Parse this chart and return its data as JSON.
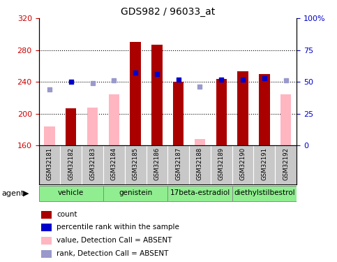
{
  "title": "GDS982 / 96033_at",
  "samples": [
    "GSM32181",
    "GSM32182",
    "GSM32183",
    "GSM32184",
    "GSM32185",
    "GSM32186",
    "GSM32187",
    "GSM32188",
    "GSM32189",
    "GSM32190",
    "GSM32191",
    "GSM32192"
  ],
  "count_values": [
    null,
    207,
    null,
    null,
    290,
    287,
    240,
    null,
    244,
    253,
    250,
    null
  ],
  "count_absent_values": [
    184,
    null,
    208,
    224,
    null,
    null,
    null,
    168,
    null,
    null,
    null,
    224
  ],
  "rank_pct_present": [
    null,
    50,
    null,
    null,
    57,
    56,
    52,
    null,
    52,
    52,
    53,
    null
  ],
  "rank_pct_absent": [
    44,
    null,
    49,
    51,
    null,
    null,
    null,
    46,
    null,
    null,
    null,
    51
  ],
  "ylim_left": [
    160,
    320
  ],
  "ylim_right": [
    0,
    100
  ],
  "yticks_left": [
    160,
    200,
    240,
    280,
    320
  ],
  "yticks_right": [
    0,
    25,
    50,
    75,
    100
  ],
  "ytick_labels_right": [
    "0",
    "25",
    "50",
    "75",
    "100%"
  ],
  "groups": [
    {
      "label": "vehicle",
      "start": 0,
      "end": 3
    },
    {
      "label": "genistein",
      "start": 3,
      "end": 6
    },
    {
      "label": "17beta-estradiol",
      "start": 6,
      "end": 9
    },
    {
      "label": "diethylstilbestrol",
      "start": 9,
      "end": 12
    }
  ],
  "bar_color_present": "#AA0000",
  "bar_color_absent": "#FFB6C1",
  "rank_color_present": "#0000CC",
  "rank_color_absent": "#9999CC",
  "rank_dot_size": 18,
  "tick_color_left": "#CC0000",
  "tick_color_right": "#0000CC",
  "group_color": "#90EE90",
  "sample_bg_color": "#C8C8C8",
  "dotted_lines": [
    200,
    240,
    280
  ]
}
